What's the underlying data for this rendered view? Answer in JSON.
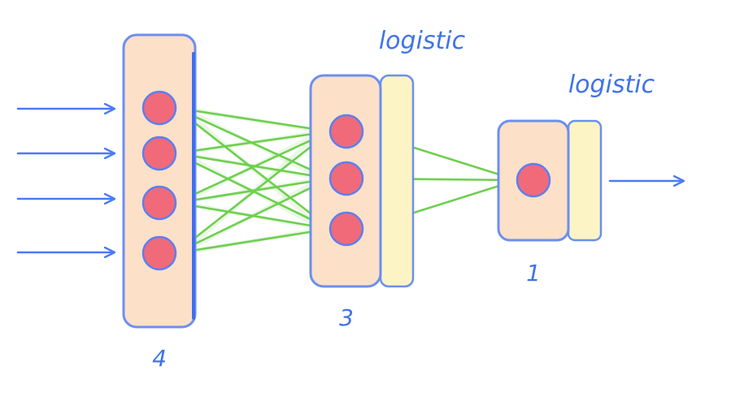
{
  "colors": {
    "layer_fill": "#fde0c8",
    "layer_edge": "#6b8ff0",
    "activation_fill": "#fdf4c6",
    "neuron_fill": "#f06a7a",
    "neuron_edge": "#5c7ff0",
    "connection": "#6fcf4f",
    "arrow": "#4a7cf2",
    "text": "#3f73e8"
  },
  "layers": [
    {
      "units": 4,
      "label": "4",
      "activation": ""
    },
    {
      "units": 3,
      "label": "3",
      "activation": "logistic"
    },
    {
      "units": 1,
      "label": "1",
      "activation": "logistic"
    }
  ],
  "inputs": {
    "count": 4,
    "icon": "arrow-right-icon"
  },
  "output": {
    "count": 1,
    "icon": "arrow-right-icon"
  }
}
